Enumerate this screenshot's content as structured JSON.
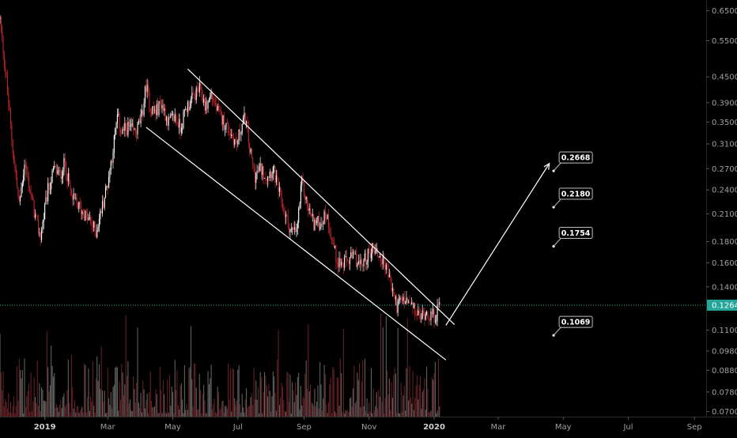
{
  "theme": {
    "background": "#000000",
    "bull_color": "#ffffff",
    "bear_color": "#c0262d",
    "axis_text": "#a0a0a0",
    "axis_line": "#2a2a2a",
    "drawing_color": "#ffffff",
    "last_price_bg": "#26a69a"
  },
  "chart_data": {
    "type": "candlestick",
    "scale": "log",
    "ylim": [
      0.068,
      0.69
    ],
    "xlim": [
      "2018-11-20",
      "2020-09-12"
    ],
    "grid": false,
    "x_ticks": [
      {
        "date": "2019-01-01",
        "label": "2019",
        "bold": true
      },
      {
        "date": "2019-03-01",
        "label": "Mar"
      },
      {
        "date": "2019-05-01",
        "label": "May"
      },
      {
        "date": "2019-07-01",
        "label": "Jul"
      },
      {
        "date": "2019-09-01",
        "label": "Sep"
      },
      {
        "date": "2019-11-01",
        "label": "Nov"
      },
      {
        "date": "2020-01-01",
        "label": "2020",
        "bold": true
      },
      {
        "date": "2020-03-01",
        "label": "Mar"
      },
      {
        "date": "2020-05-01",
        "label": "May"
      },
      {
        "date": "2020-07-01",
        "label": "Jul"
      },
      {
        "date": "2020-09-01",
        "label": "Sep"
      }
    ],
    "y_ticks": [
      "0.6500",
      "0.5500",
      "0.4500",
      "0.3900",
      "0.3500",
      "0.3100",
      "0.2700",
      "0.2400",
      "0.2100",
      "0.1800",
      "0.1600",
      "0.1400",
      "0.1100",
      "0.0980",
      "0.0880",
      "0.0780",
      "0.0700"
    ],
    "last_price": {
      "value": 0.1264,
      "label": "0.1264"
    },
    "price_path": [
      [
        "2018-11-20",
        0.62
      ],
      [
        "2018-11-26",
        0.44
      ],
      [
        "2018-12-02",
        0.3
      ],
      [
        "2018-12-08",
        0.22
      ],
      [
        "2018-12-13",
        0.28
      ],
      [
        "2018-12-18",
        0.24
      ],
      [
        "2018-12-24",
        0.2
      ],
      [
        "2018-12-28",
        0.185
      ],
      [
        "2019-01-04",
        0.24
      ],
      [
        "2019-01-10",
        0.27
      ],
      [
        "2019-01-15",
        0.26
      ],
      [
        "2019-01-20",
        0.28
      ],
      [
        "2019-01-26",
        0.23
      ],
      [
        "2019-02-01",
        0.22
      ],
      [
        "2019-02-07",
        0.21
      ],
      [
        "2019-02-13",
        0.2
      ],
      [
        "2019-02-18",
        0.19
      ],
      [
        "2019-02-24",
        0.22
      ],
      [
        "2019-03-01",
        0.25
      ],
      [
        "2019-03-05",
        0.29
      ],
      [
        "2019-03-10",
        0.36
      ],
      [
        "2019-03-14",
        0.33
      ],
      [
        "2019-03-20",
        0.34
      ],
      [
        "2019-03-27",
        0.33
      ],
      [
        "2019-04-02",
        0.36
      ],
      [
        "2019-04-06",
        0.43
      ],
      [
        "2019-04-10",
        0.38
      ],
      [
        "2019-04-15",
        0.37
      ],
      [
        "2019-04-20",
        0.39
      ],
      [
        "2019-04-27",
        0.35
      ],
      [
        "2019-05-03",
        0.36
      ],
      [
        "2019-05-08",
        0.34
      ],
      [
        "2019-05-14",
        0.38
      ],
      [
        "2019-05-20",
        0.4
      ],
      [
        "2019-05-26",
        0.42
      ],
      [
        "2019-06-01",
        0.38
      ],
      [
        "2019-06-06",
        0.41
      ],
      [
        "2019-06-12",
        0.37
      ],
      [
        "2019-06-18",
        0.35
      ],
      [
        "2019-06-24",
        0.33
      ],
      [
        "2019-06-30",
        0.31
      ],
      [
        "2019-07-04",
        0.34
      ],
      [
        "2019-07-08",
        0.36
      ],
      [
        "2019-07-12",
        0.3
      ],
      [
        "2019-07-17",
        0.26
      ],
      [
        "2019-07-22",
        0.27
      ],
      [
        "2019-07-28",
        0.26
      ],
      [
        "2019-08-03",
        0.27
      ],
      [
        "2019-08-08",
        0.24
      ],
      [
        "2019-08-14",
        0.21
      ],
      [
        "2019-08-20",
        0.19
      ],
      [
        "2019-08-25",
        0.19
      ],
      [
        "2019-08-30",
        0.25
      ],
      [
        "2019-09-04",
        0.22
      ],
      [
        "2019-09-10",
        0.2
      ],
      [
        "2019-09-16",
        0.2
      ],
      [
        "2019-09-22",
        0.21
      ],
      [
        "2019-09-26",
        0.19
      ],
      [
        "2019-10-01",
        0.165
      ],
      [
        "2019-10-07",
        0.158
      ],
      [
        "2019-10-12",
        0.162
      ],
      [
        "2019-10-18",
        0.165
      ],
      [
        "2019-10-24",
        0.157
      ],
      [
        "2019-10-30",
        0.166
      ],
      [
        "2019-11-05",
        0.175
      ],
      [
        "2019-11-11",
        0.165
      ],
      [
        "2019-11-17",
        0.158
      ],
      [
        "2019-11-22",
        0.14
      ],
      [
        "2019-11-27",
        0.126
      ],
      [
        "2019-12-03",
        0.13
      ],
      [
        "2019-12-09",
        0.127
      ],
      [
        "2019-12-14",
        0.122
      ],
      [
        "2019-12-19",
        0.118
      ],
      [
        "2019-12-24",
        0.122
      ],
      [
        "2019-12-30",
        0.119
      ],
      [
        "2020-01-03",
        0.12
      ],
      [
        "2020-01-06",
        0.127
      ]
    ],
    "channel": {
      "upper": [
        [
          "2019-05-15",
          0.47
        ],
        [
          "2020-01-20",
          0.1135
        ]
      ],
      "lower": [
        [
          "2019-04-06",
          0.34
        ],
        [
          "2020-01-12",
          0.0932
        ]
      ]
    },
    "projection_arrow": [
      [
        "2020-01-12",
        0.113
      ],
      [
        "2020-04-18",
        0.278
      ]
    ],
    "targets": [
      {
        "value": 0.2668,
        "label": "0.2668",
        "anchor_date": "2020-04-22"
      },
      {
        "value": 0.218,
        "label": "0.2180",
        "anchor_date": "2020-04-22"
      },
      {
        "value": 0.1754,
        "label": "0.1754",
        "anchor_date": "2020-04-22"
      },
      {
        "value": 0.1069,
        "label": "0.1069",
        "anchor_date": "2020-04-22"
      }
    ]
  }
}
